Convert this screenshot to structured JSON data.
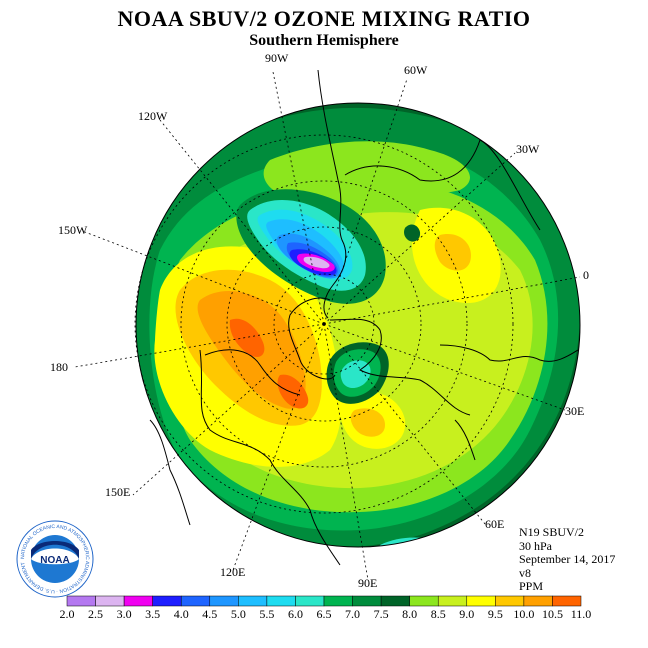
{
  "header": {
    "title": "NOAA SBUV/2 OZONE MIXING RATIO",
    "subtitle": "Southern Hemisphere"
  },
  "map": {
    "projection": "polar stereographic (south pole centered)",
    "longitude_labels": [
      "90W",
      "60W",
      "30W",
      "0",
      "30E",
      "60E",
      "90E",
      "120E",
      "150E",
      "180",
      "150W",
      "120W"
    ],
    "colors": {
      "background": "#008c3c",
      "ocean_edge": "#2ce6c8"
    }
  },
  "info": {
    "satellite": "N19 SBUV/2",
    "level": "30 hPa",
    "date": "September 14, 2017",
    "version": "v8",
    "units": "PPM"
  },
  "logo": {
    "text": "NOAA",
    "ring_text": "NATIONAL OCEANIC AND ATMOSPHERIC ADMINISTRATION · U.S. DEPARTMENT OF COMMERCE"
  },
  "colorbar": {
    "labels": [
      "2.0",
      "2.5",
      "3.0",
      "3.5",
      "4.0",
      "4.5",
      "5.0",
      "5.5",
      "6.0",
      "6.5",
      "7.0",
      "7.5",
      "8.0",
      "8.5",
      "9.0",
      "9.5",
      "10.0",
      "10.5",
      "11.0"
    ],
    "colors": [
      "#b478f0",
      "#dcb4f0",
      "#f000f0",
      "#1e1eff",
      "#1e64ff",
      "#1e96ff",
      "#1ebeff",
      "#1edcf0",
      "#2ae6c8",
      "#00b450",
      "#008c3c",
      "#006428",
      "#8ce61e",
      "#c8f01e",
      "#ffff00",
      "#ffc800",
      "#ffa000",
      "#ff6400",
      "#ff0000",
      "#a05028"
    ]
  }
}
